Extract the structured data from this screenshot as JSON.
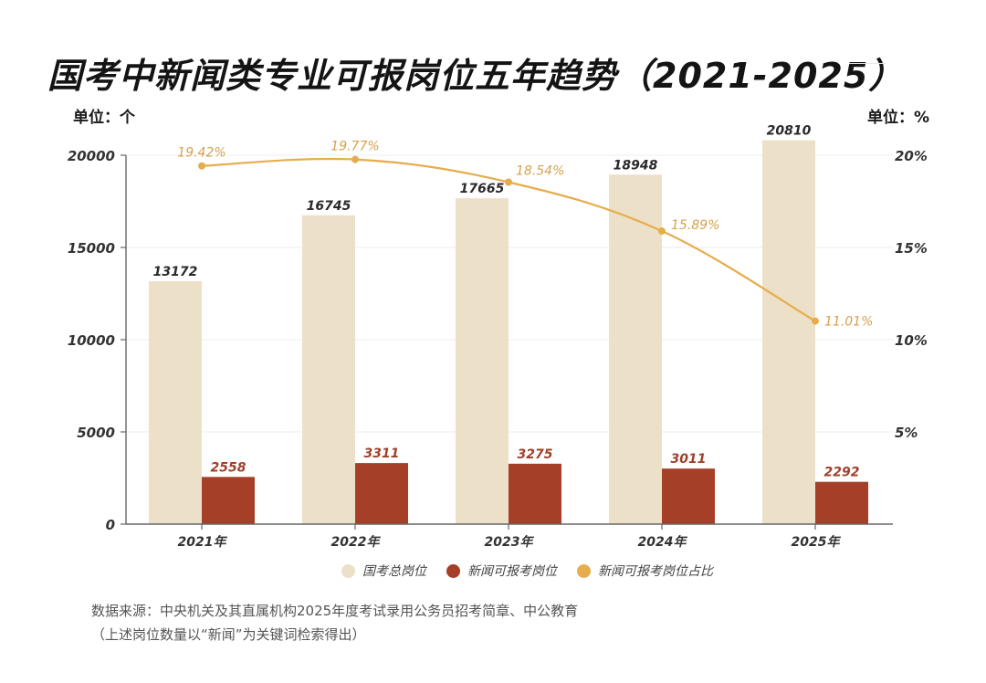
{
  "title": "国考中新闻类专业可报岗位五年趋势（2021-2025）",
  "unit_left": "单位：个",
  "unit_right": "单位：%",
  "legend": [
    {
      "label": "国考总岗位",
      "color": "#ede0c8"
    },
    {
      "label": "新闻可报考岗位",
      "color": "#a53f27"
    },
    {
      "label": "新闻可报考岗位占比",
      "color": "#e6ad4e"
    }
  ],
  "footer": {
    "line1": "数据来源：中央机关及其直属机构2025年度考试录用公务员招考简章、中公教育",
    "line2": "（上述岗位数量以“新闻”为关键词检索得出）"
  },
  "chart_data": {
    "type": "bar",
    "title": "国考中新闻类专业可报岗位五年趋势（2021-2025）",
    "categories": [
      "2021年",
      "2022年",
      "2023年",
      "2024年",
      "2025年"
    ],
    "series": [
      {
        "name": "国考总岗位",
        "type": "bar",
        "axis": "left",
        "color": "#ede0c8",
        "values": [
          13172,
          16745,
          17665,
          18948,
          20810
        ],
        "labels": [
          "13172",
          "16745",
          "17665",
          "18948",
          "20810"
        ]
      },
      {
        "name": "新闻可报考岗位",
        "type": "bar",
        "axis": "left",
        "color": "#a53f27",
        "values": [
          2558,
          3311,
          3275,
          3011,
          2292
        ],
        "labels": [
          "2558",
          "3311",
          "3275",
          "3011",
          "2292"
        ]
      },
      {
        "name": "新闻可报考岗位占比",
        "type": "line",
        "axis": "right",
        "color": "#e6ad4e",
        "values": [
          19.42,
          19.77,
          18.54,
          15.89,
          11.01
        ],
        "labels": [
          "19.42%",
          "19.77%",
          "18.54%",
          "15.89%",
          "11.01%"
        ]
      }
    ],
    "y_left": {
      "label": "单位：个",
      "ylim": [
        0,
        20000
      ],
      "ticks": [
        0,
        5000,
        10000,
        15000,
        20000
      ],
      "tick_labels": [
        "0",
        "5000",
        "10000",
        "15000",
        "20000"
      ]
    },
    "y_right": {
      "label": "单位：%",
      "ylim": [
        0,
        20
      ],
      "ticks": [
        5,
        10,
        15,
        20
      ],
      "tick_labels": [
        "5%",
        "10%",
        "15%",
        "20%"
      ]
    },
    "grid": true,
    "legend_position": "bottom"
  }
}
